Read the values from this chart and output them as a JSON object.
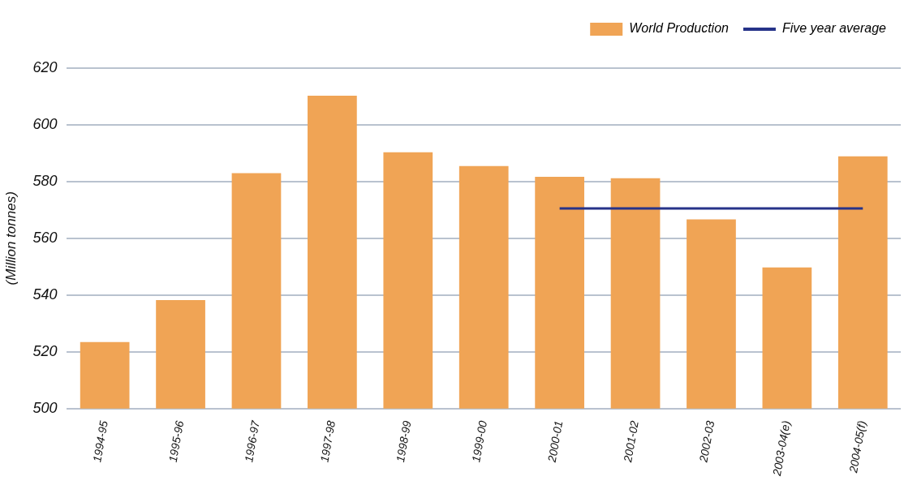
{
  "chart_data": {
    "type": "bar",
    "ylabel": "(Million tonnes)",
    "categories": [
      "1994-95",
      "1995-96",
      "1996-97",
      "1997-98",
      "1998-99",
      "1999-00",
      "2000-01",
      "2001-02",
      "2002-03",
      "2003-04(e)",
      "2004-05(f)"
    ],
    "series": [
      {
        "name": "World Production",
        "color": "#f0a455",
        "values": [
          523.4,
          538.2,
          583,
          610.3,
          590.3,
          585.5,
          581.7,
          581.2,
          566.7,
          549.7,
          588.9
        ]
      },
      {
        "name": "Five year average",
        "type": "line",
        "color": "#263389",
        "marker": "none",
        "values": [
          null,
          null,
          null,
          null,
          null,
          null,
          570.5,
          570.5,
          570.5,
          570.5,
          570.5
        ]
      }
    ],
    "ylim": [
      500,
      620
    ],
    "yticks": [
      500,
      520,
      540,
      560,
      580,
      600,
      620
    ],
    "grid": "y",
    "legend": "top right"
  }
}
